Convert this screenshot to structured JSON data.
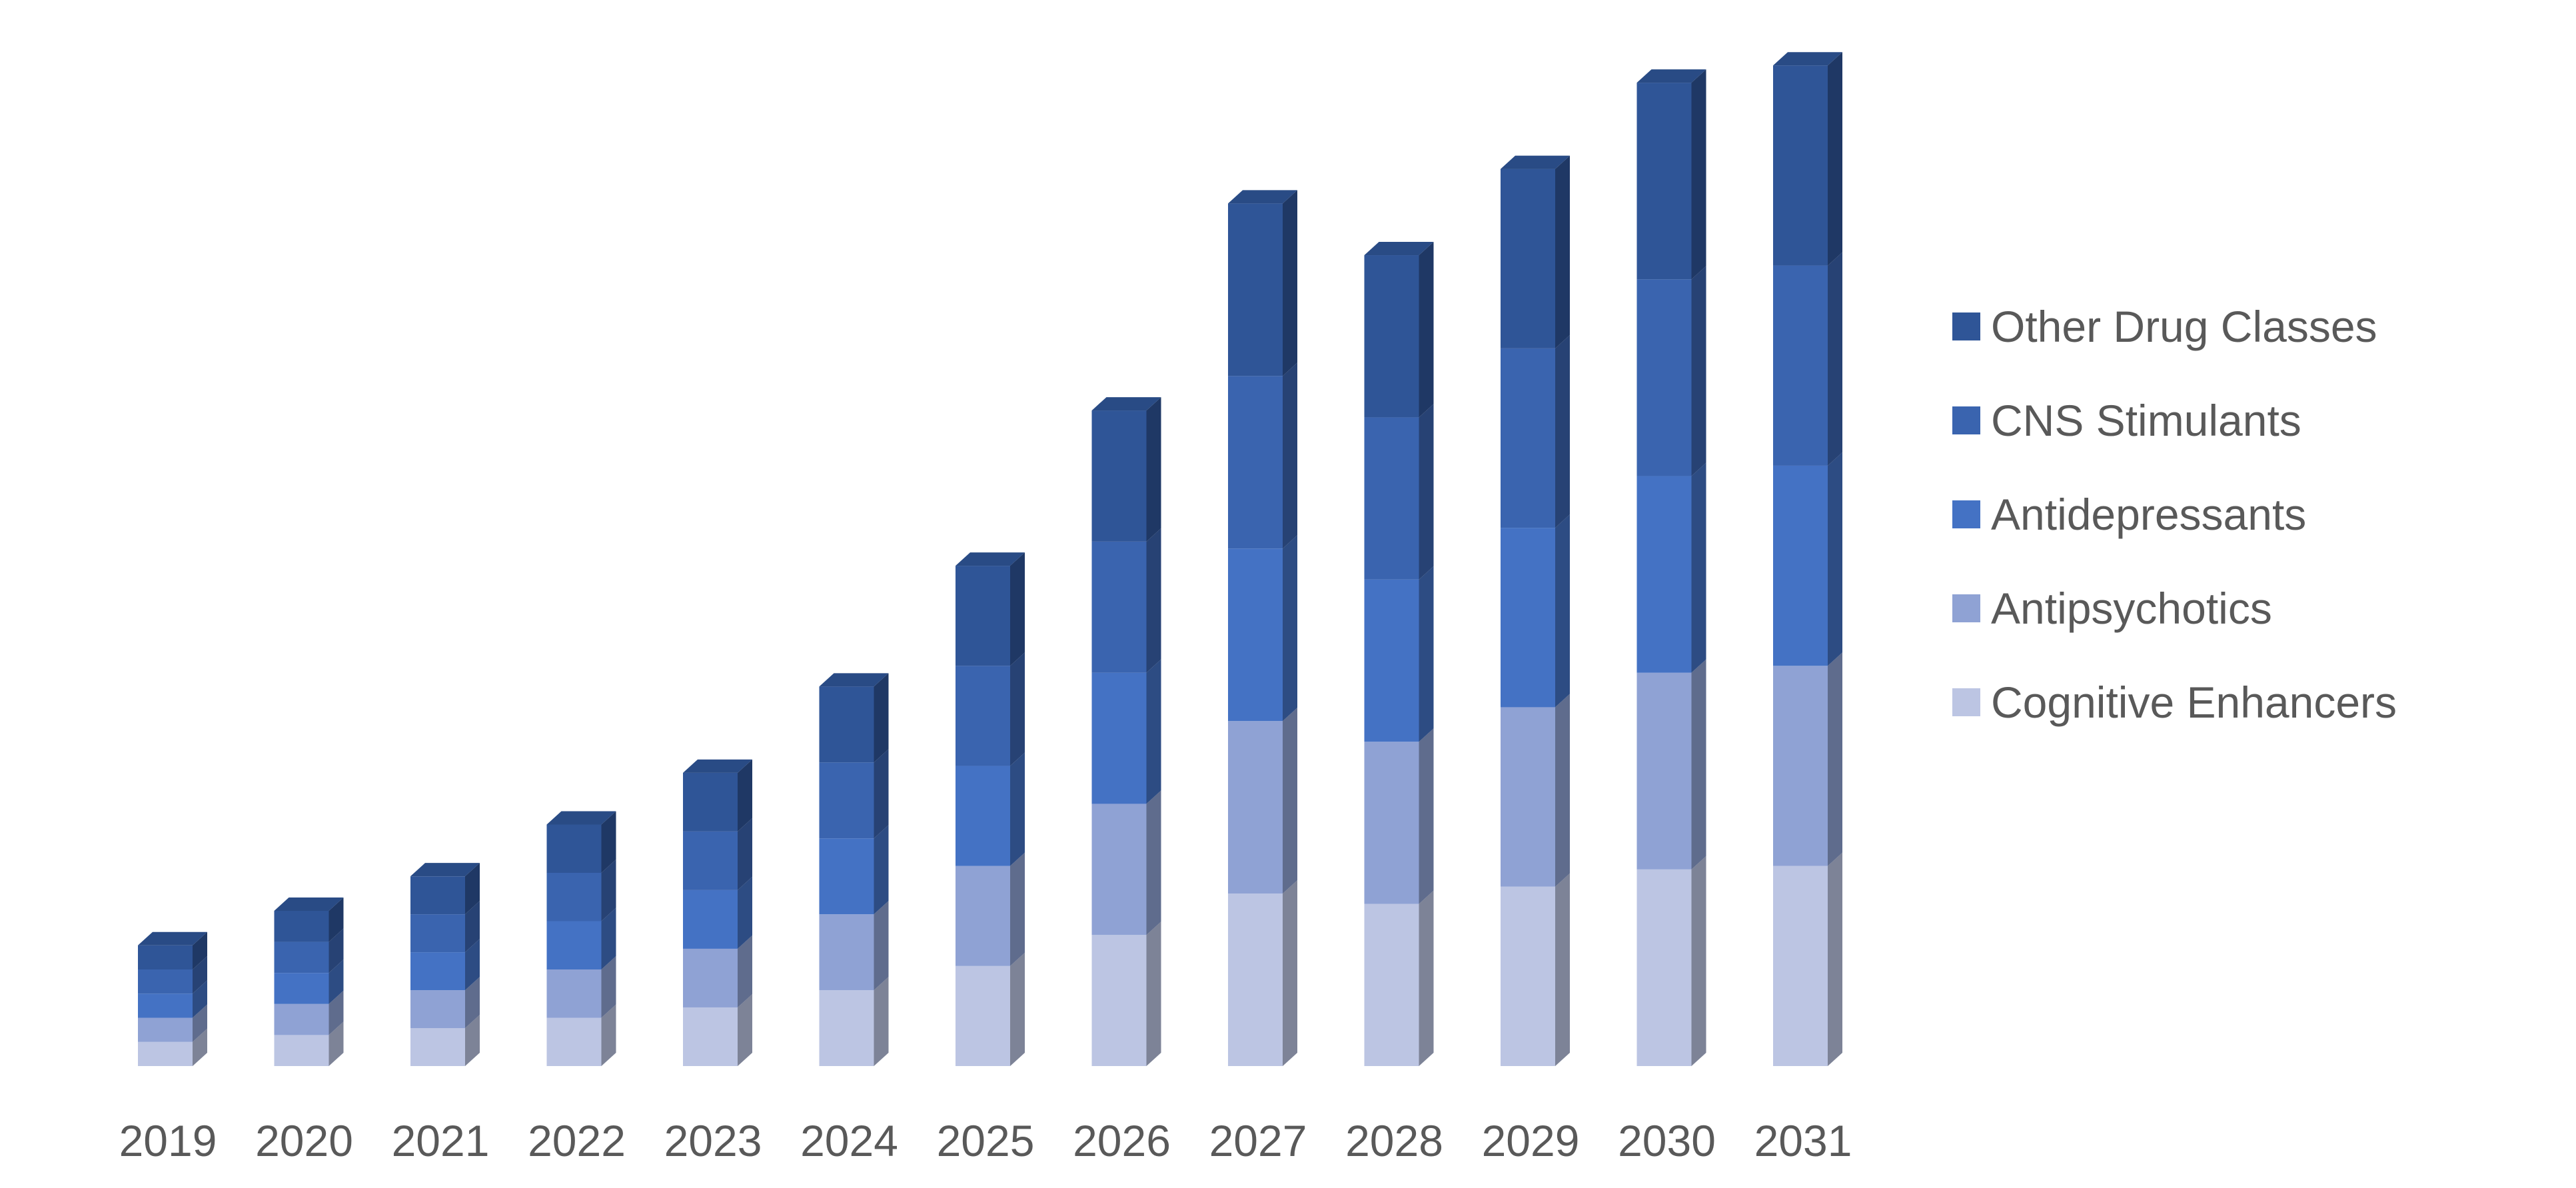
{
  "chart_data": {
    "type": "bar",
    "stacked": true,
    "style": "3d-column",
    "title": "",
    "xlabel": "",
    "ylabel": "",
    "y_axis_visible": false,
    "grid": false,
    "legend_position": "right",
    "ylim": [
      0,
      14
    ],
    "categories": [
      "2019",
      "2020",
      "2021",
      "2022",
      "2023",
      "2024",
      "2025",
      "2026",
      "2027",
      "2028",
      "2029",
      "2030",
      "2031"
    ],
    "series": [
      {
        "name": "Cognitive Enhancers",
        "color": "#BCC5E3",
        "side_color": "#7D8397",
        "values": [
          0.35,
          0.45,
          0.55,
          0.7,
          0.85,
          1.1,
          1.45,
          1.9,
          2.5,
          2.35,
          2.6,
          2.85,
          2.9
        ]
      },
      {
        "name": "Antipsychotics",
        "color": "#8FA2D4",
        "side_color": "#5F6C8D",
        "values": [
          0.35,
          0.45,
          0.55,
          0.7,
          0.85,
          1.1,
          1.45,
          1.9,
          2.5,
          2.35,
          2.6,
          2.85,
          2.9
        ]
      },
      {
        "name": "Antidepressants",
        "color": "#4472C4",
        "side_color": "#2D4C83",
        "values": [
          0.35,
          0.45,
          0.55,
          0.7,
          0.85,
          1.1,
          1.45,
          1.9,
          2.5,
          2.35,
          2.6,
          2.85,
          2.9
        ]
      },
      {
        "name": "CNS Stimulants",
        "color": "#3A64AF",
        "side_color": "#274274",
        "values": [
          0.35,
          0.45,
          0.55,
          0.7,
          0.85,
          1.1,
          1.45,
          1.9,
          2.5,
          2.35,
          2.6,
          2.85,
          2.9
        ]
      },
      {
        "name": "Other Drug Classes",
        "color": "#2F5597",
        "side_color": "#1F3865",
        "values": [
          0.35,
          0.45,
          0.55,
          0.7,
          0.85,
          1.1,
          1.45,
          1.9,
          2.5,
          2.35,
          2.6,
          2.85,
          2.9
        ]
      }
    ],
    "legend_order": [
      "Other Drug Classes",
      "CNS Stimulants",
      "Antidepressants",
      "Antipsychotics",
      "Cognitive Enhancers"
    ]
  }
}
